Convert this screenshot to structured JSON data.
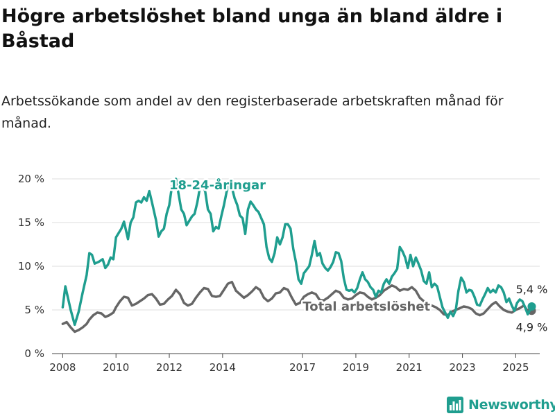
{
  "header": {
    "title": "Högre arbetslöshet bland unga än bland äldre i Båstad",
    "subtitle": "Arbetssökande som andel av den registerbaserade arbetskraften månad för månad."
  },
  "brand": {
    "name": "Newsworthy",
    "color": "#1f9e8f",
    "logo_icon": "bar-chart-icon"
  },
  "chart_data": {
    "type": "line",
    "title": "",
    "xlabel": "",
    "ylabel": "",
    "xlim": [
      2007.6,
      2025.9
    ],
    "ylim": [
      0,
      20
    ],
    "grid": "horizontal",
    "legend": "inline-labels",
    "x_ticks": [
      {
        "value": 2008,
        "label": "2008"
      },
      {
        "value": 2010,
        "label": "2010"
      },
      {
        "value": 2012,
        "label": "2012"
      },
      {
        "value": 2014,
        "label": "2014"
      },
      {
        "value": 2017,
        "label": "2017"
      },
      {
        "value": 2019,
        "label": "2019"
      },
      {
        "value": 2021,
        "label": "2021"
      },
      {
        "value": 2023,
        "label": "2023"
      },
      {
        "value": 2025,
        "label": "2025"
      }
    ],
    "y_ticks": [
      {
        "value": 0,
        "label": "0 %"
      },
      {
        "value": 5,
        "label": "5 %"
      },
      {
        "value": 10,
        "label": "10 %"
      },
      {
        "value": 15,
        "label": "15 %"
      },
      {
        "value": 20,
        "label": "20 %"
      }
    ],
    "series": [
      {
        "name": "18-24-åringar",
        "color": "#1f9e8f",
        "label_at": [
          2012.0,
          19.3
        ],
        "end_label": "5,4 %",
        "end_value": 5.4,
        "end_x": 2025.6,
        "points": [
          [
            2008.0,
            5.3
          ],
          [
            2008.1,
            7.7
          ],
          [
            2008.3,
            5.0
          ],
          [
            2008.45,
            3.3
          ],
          [
            2008.6,
            4.8
          ],
          [
            2008.75,
            7.0
          ],
          [
            2008.9,
            9.0
          ],
          [
            2009.0,
            11.5
          ],
          [
            2009.1,
            11.3
          ],
          [
            2009.2,
            10.3
          ],
          [
            2009.35,
            10.5
          ],
          [
            2009.5,
            10.8
          ],
          [
            2009.6,
            9.8
          ],
          [
            2009.7,
            10.2
          ],
          [
            2009.8,
            11.0
          ],
          [
            2009.9,
            10.8
          ],
          [
            2010.0,
            13.3
          ],
          [
            2010.1,
            13.8
          ],
          [
            2010.2,
            14.3
          ],
          [
            2010.3,
            15.1
          ],
          [
            2010.45,
            13.1
          ],
          [
            2010.55,
            15.0
          ],
          [
            2010.65,
            15.6
          ],
          [
            2010.75,
            17.3
          ],
          [
            2010.85,
            17.5
          ],
          [
            2010.95,
            17.3
          ],
          [
            2011.05,
            17.9
          ],
          [
            2011.15,
            17.5
          ],
          [
            2011.25,
            18.6
          ],
          [
            2011.35,
            17.3
          ],
          [
            2011.5,
            15.3
          ],
          [
            2011.6,
            13.4
          ],
          [
            2011.7,
            14.0
          ],
          [
            2011.8,
            14.3
          ],
          [
            2011.9,
            16.0
          ],
          [
            2012.0,
            17.0
          ],
          [
            2012.1,
            19.2
          ],
          [
            2012.25,
            20.0
          ],
          [
            2012.45,
            16.5
          ],
          [
            2012.55,
            16.0
          ],
          [
            2012.65,
            14.7
          ],
          [
            2012.75,
            15.2
          ],
          [
            2012.85,
            15.7
          ],
          [
            2012.95,
            16.0
          ],
          [
            2013.05,
            17.3
          ],
          [
            2013.15,
            19.0
          ],
          [
            2013.25,
            19.5
          ],
          [
            2013.35,
            18.5
          ],
          [
            2013.45,
            16.5
          ],
          [
            2013.55,
            16.0
          ],
          [
            2013.65,
            14.0
          ],
          [
            2013.75,
            14.5
          ],
          [
            2013.85,
            14.3
          ],
          [
            2013.95,
            15.7
          ],
          [
            2014.05,
            17.0
          ],
          [
            2014.15,
            18.5
          ],
          [
            2014.25,
            19.5
          ],
          [
            2014.35,
            19.0
          ],
          [
            2014.45,
            17.8
          ],
          [
            2014.55,
            17.0
          ],
          [
            2014.65,
            15.8
          ],
          [
            2014.75,
            15.5
          ],
          [
            2014.85,
            13.7
          ],
          [
            2014.95,
            16.5
          ],
          [
            2015.05,
            17.4
          ],
          [
            2015.15,
            17.0
          ],
          [
            2015.25,
            16.5
          ],
          [
            2015.35,
            16.2
          ],
          [
            2015.45,
            15.5
          ],
          [
            2015.55,
            14.8
          ],
          [
            2015.65,
            12.2
          ],
          [
            2015.75,
            10.9
          ],
          [
            2015.85,
            10.5
          ],
          [
            2015.95,
            11.5
          ],
          [
            2016.05,
            13.3
          ],
          [
            2016.15,
            12.5
          ],
          [
            2016.25,
            13.3
          ],
          [
            2016.35,
            14.8
          ],
          [
            2016.45,
            14.8
          ],
          [
            2016.55,
            14.3
          ],
          [
            2016.65,
            12.0
          ],
          [
            2016.75,
            10.5
          ],
          [
            2016.85,
            8.5
          ],
          [
            2016.95,
            8.0
          ],
          [
            2017.05,
            9.2
          ],
          [
            2017.15,
            9.6
          ],
          [
            2017.25,
            10.0
          ],
          [
            2017.35,
            11.3
          ],
          [
            2017.45,
            12.9
          ],
          [
            2017.55,
            11.2
          ],
          [
            2017.65,
            11.5
          ],
          [
            2017.75,
            10.3
          ],
          [
            2017.85,
            9.8
          ],
          [
            2017.95,
            9.5
          ],
          [
            2018.05,
            9.9
          ],
          [
            2018.15,
            10.5
          ],
          [
            2018.25,
            11.6
          ],
          [
            2018.35,
            11.5
          ],
          [
            2018.45,
            10.6
          ],
          [
            2018.55,
            8.6
          ],
          [
            2018.65,
            7.3
          ],
          [
            2018.75,
            7.2
          ],
          [
            2018.85,
            7.3
          ],
          [
            2018.95,
            7.0
          ],
          [
            2019.05,
            7.5
          ],
          [
            2019.15,
            8.5
          ],
          [
            2019.25,
            9.3
          ],
          [
            2019.35,
            8.5
          ],
          [
            2019.45,
            8.2
          ],
          [
            2019.55,
            7.6
          ],
          [
            2019.65,
            7.3
          ],
          [
            2019.75,
            6.5
          ],
          [
            2019.85,
            7.2
          ],
          [
            2019.95,
            7.0
          ],
          [
            2020.05,
            8.0
          ],
          [
            2020.15,
            8.5
          ],
          [
            2020.25,
            8.0
          ],
          [
            2020.35,
            8.8
          ],
          [
            2020.45,
            9.2
          ],
          [
            2020.55,
            9.7
          ],
          [
            2020.65,
            12.2
          ],
          [
            2020.75,
            11.7
          ],
          [
            2020.85,
            11.0
          ],
          [
            2020.95,
            9.8
          ],
          [
            2021.05,
            11.3
          ],
          [
            2021.15,
            10.0
          ],
          [
            2021.25,
            11.0
          ],
          [
            2021.35,
            10.3
          ],
          [
            2021.45,
            9.5
          ],
          [
            2021.55,
            8.3
          ],
          [
            2021.65,
            8.0
          ],
          [
            2021.75,
            9.3
          ],
          [
            2021.85,
            7.6
          ],
          [
            2021.95,
            8.0
          ],
          [
            2022.05,
            7.7
          ],
          [
            2022.15,
            6.5
          ],
          [
            2022.25,
            5.3
          ],
          [
            2022.35,
            4.7
          ],
          [
            2022.45,
            4.1
          ],
          [
            2022.55,
            4.8
          ],
          [
            2022.65,
            4.3
          ],
          [
            2022.75,
            5.0
          ],
          [
            2022.85,
            7.2
          ],
          [
            2022.95,
            8.7
          ],
          [
            2023.05,
            8.2
          ],
          [
            2023.15,
            7.0
          ],
          [
            2023.25,
            7.3
          ],
          [
            2023.35,
            7.2
          ],
          [
            2023.45,
            6.5
          ],
          [
            2023.55,
            5.6
          ],
          [
            2023.65,
            5.5
          ],
          [
            2023.75,
            6.2
          ],
          [
            2023.85,
            6.8
          ],
          [
            2023.95,
            7.5
          ],
          [
            2024.05,
            7.0
          ],
          [
            2024.15,
            7.3
          ],
          [
            2024.25,
            7.0
          ],
          [
            2024.35,
            7.8
          ],
          [
            2024.45,
            7.6
          ],
          [
            2024.55,
            7.0
          ],
          [
            2024.65,
            5.9
          ],
          [
            2024.75,
            6.3
          ],
          [
            2024.85,
            5.5
          ],
          [
            2024.95,
            4.9
          ],
          [
            2025.05,
            5.8
          ],
          [
            2025.15,
            6.2
          ],
          [
            2025.25,
            6.0
          ],
          [
            2025.35,
            5.3
          ],
          [
            2025.45,
            4.5
          ],
          [
            2025.6,
            5.4
          ]
        ]
      },
      {
        "name": "Total arbetslöshet",
        "color": "#666666",
        "label_at": [
          2019.4,
          5.4
        ],
        "end_label": "4,9 %",
        "end_value": 4.9,
        "end_x": 2025.6,
        "points": [
          [
            2008.0,
            3.4
          ],
          [
            2008.15,
            3.6
          ],
          [
            2008.3,
            3.0
          ],
          [
            2008.45,
            2.5
          ],
          [
            2008.6,
            2.7
          ],
          [
            2008.75,
            3.0
          ],
          [
            2008.9,
            3.4
          ],
          [
            2009.0,
            3.9
          ],
          [
            2009.15,
            4.4
          ],
          [
            2009.3,
            4.7
          ],
          [
            2009.45,
            4.6
          ],
          [
            2009.6,
            4.2
          ],
          [
            2009.75,
            4.4
          ],
          [
            2009.9,
            4.7
          ],
          [
            2010.0,
            5.3
          ],
          [
            2010.15,
            6.0
          ],
          [
            2010.3,
            6.5
          ],
          [
            2010.45,
            6.4
          ],
          [
            2010.6,
            5.5
          ],
          [
            2010.75,
            5.7
          ],
          [
            2010.9,
            6.0
          ],
          [
            2011.05,
            6.3
          ],
          [
            2011.2,
            6.7
          ],
          [
            2011.35,
            6.8
          ],
          [
            2011.5,
            6.3
          ],
          [
            2011.65,
            5.6
          ],
          [
            2011.8,
            5.7
          ],
          [
            2011.95,
            6.2
          ],
          [
            2012.1,
            6.6
          ],
          [
            2012.25,
            7.3
          ],
          [
            2012.4,
            6.8
          ],
          [
            2012.55,
            5.8
          ],
          [
            2012.7,
            5.5
          ],
          [
            2012.85,
            5.7
          ],
          [
            2013.0,
            6.4
          ],
          [
            2013.15,
            7.0
          ],
          [
            2013.3,
            7.5
          ],
          [
            2013.45,
            7.4
          ],
          [
            2013.6,
            6.6
          ],
          [
            2013.75,
            6.5
          ],
          [
            2013.9,
            6.6
          ],
          [
            2014.05,
            7.3
          ],
          [
            2014.2,
            8.0
          ],
          [
            2014.35,
            8.2
          ],
          [
            2014.5,
            7.2
          ],
          [
            2014.65,
            6.8
          ],
          [
            2014.8,
            6.4
          ],
          [
            2014.95,
            6.7
          ],
          [
            2015.1,
            7.1
          ],
          [
            2015.25,
            7.6
          ],
          [
            2015.4,
            7.3
          ],
          [
            2015.55,
            6.4
          ],
          [
            2015.7,
            6.0
          ],
          [
            2015.85,
            6.3
          ],
          [
            2016.0,
            6.9
          ],
          [
            2016.15,
            7.0
          ],
          [
            2016.3,
            7.5
          ],
          [
            2016.45,
            7.3
          ],
          [
            2016.6,
            6.4
          ],
          [
            2016.75,
            5.6
          ],
          [
            2016.9,
            5.8
          ],
          [
            2017.05,
            6.5
          ],
          [
            2017.2,
            6.8
          ],
          [
            2017.35,
            7.0
          ],
          [
            2017.5,
            6.8
          ],
          [
            2017.65,
            6.1
          ],
          [
            2017.8,
            6.1
          ],
          [
            2017.95,
            6.4
          ],
          [
            2018.1,
            6.8
          ],
          [
            2018.25,
            7.2
          ],
          [
            2018.4,
            7.0
          ],
          [
            2018.55,
            6.4
          ],
          [
            2018.7,
            6.2
          ],
          [
            2018.85,
            6.3
          ],
          [
            2019.0,
            6.7
          ],
          [
            2019.15,
            7.0
          ],
          [
            2019.3,
            6.9
          ],
          [
            2019.45,
            6.5
          ],
          [
            2019.6,
            6.2
          ],
          [
            2019.75,
            6.4
          ],
          [
            2019.9,
            6.7
          ],
          [
            2020.05,
            7.2
          ],
          [
            2020.2,
            7.5
          ],
          [
            2020.35,
            7.8
          ],
          [
            2020.5,
            7.6
          ],
          [
            2020.65,
            7.2
          ],
          [
            2020.8,
            7.4
          ],
          [
            2020.95,
            7.3
          ],
          [
            2021.1,
            7.6
          ],
          [
            2021.25,
            7.2
          ],
          [
            2021.4,
            6.4
          ],
          [
            2021.55,
            6.0
          ],
          [
            2021.7,
            5.7
          ],
          [
            2021.85,
            5.5
          ],
          [
            2022.0,
            5.3
          ],
          [
            2022.15,
            5.0
          ],
          [
            2022.3,
            4.5
          ],
          [
            2022.45,
            4.4
          ],
          [
            2022.6,
            4.8
          ],
          [
            2022.75,
            5.0
          ],
          [
            2022.9,
            5.2
          ],
          [
            2023.05,
            5.4
          ],
          [
            2023.2,
            5.3
          ],
          [
            2023.35,
            5.1
          ],
          [
            2023.5,
            4.6
          ],
          [
            2023.65,
            4.4
          ],
          [
            2023.8,
            4.6
          ],
          [
            2023.95,
            5.1
          ],
          [
            2024.1,
            5.6
          ],
          [
            2024.25,
            5.9
          ],
          [
            2024.4,
            5.4
          ],
          [
            2024.55,
            5.0
          ],
          [
            2024.7,
            4.8
          ],
          [
            2024.85,
            4.7
          ],
          [
            2025.0,
            5.0
          ],
          [
            2025.15,
            5.2
          ],
          [
            2025.3,
            5.5
          ],
          [
            2025.45,
            4.9
          ],
          [
            2025.6,
            4.9
          ]
        ]
      }
    ]
  }
}
